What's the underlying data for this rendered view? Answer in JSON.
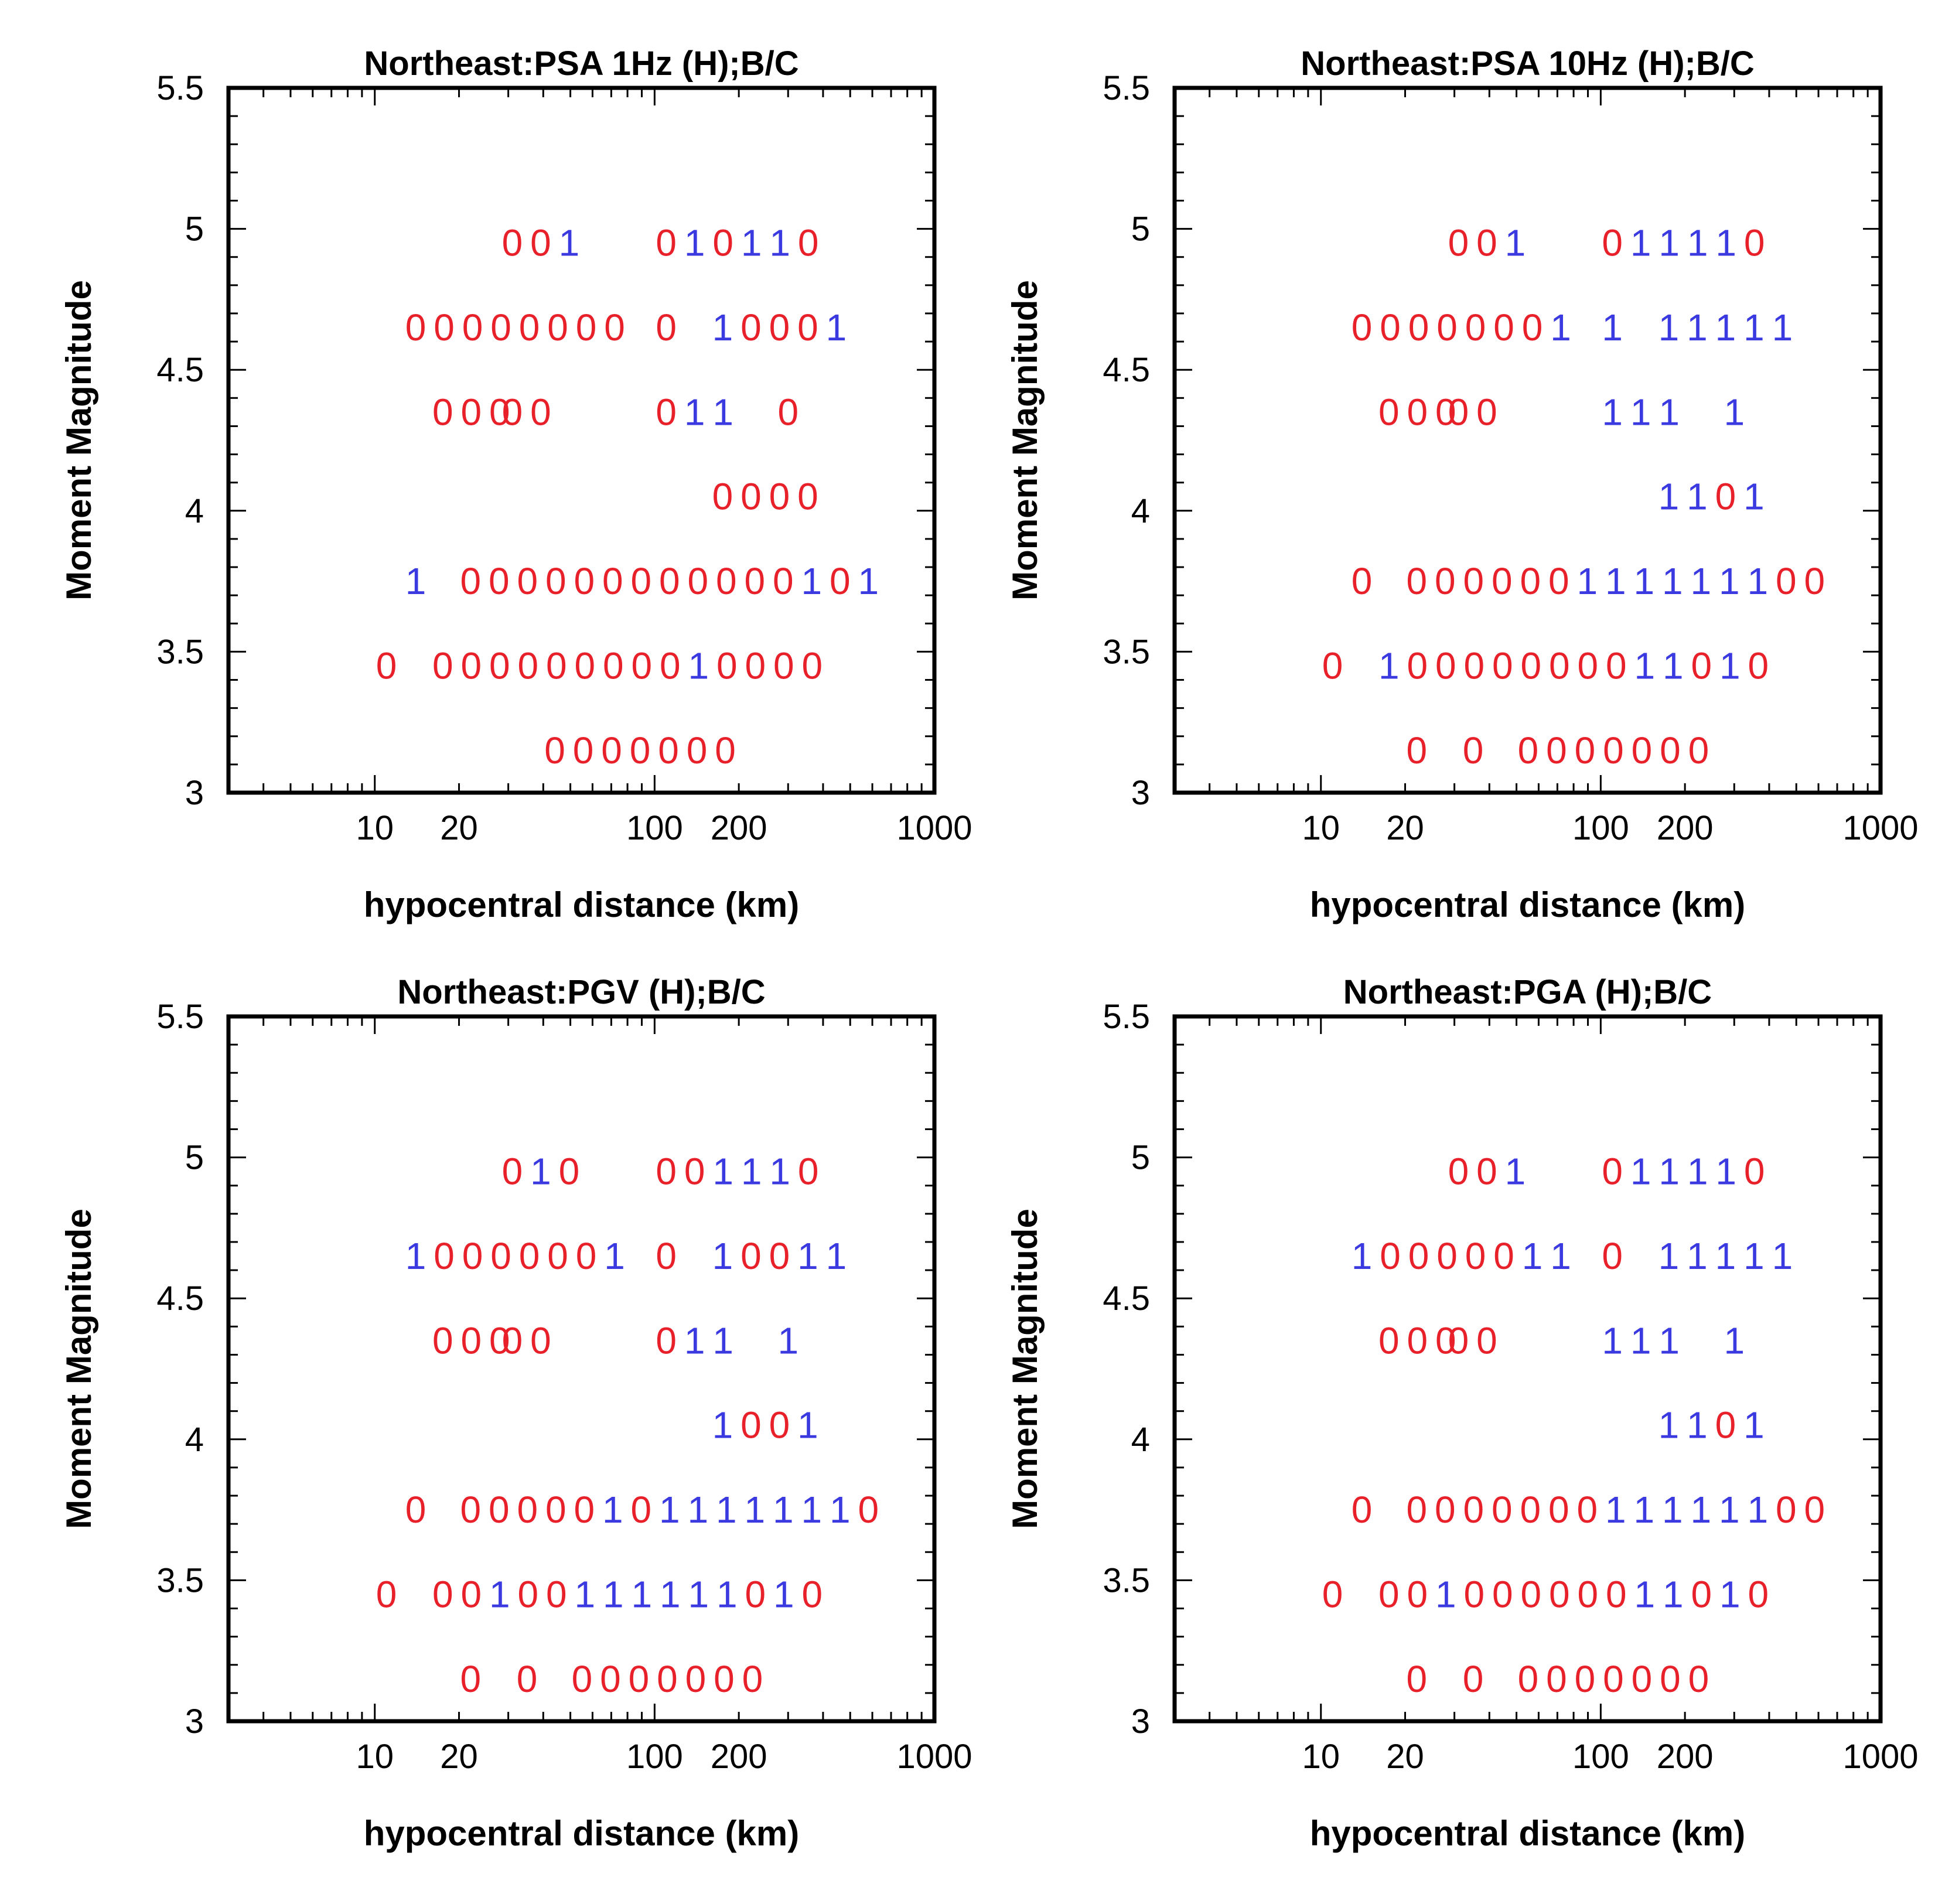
{
  "colors": {
    "zero": "#e8202a",
    "one": "#3a3ae0",
    "axis": "#000000"
  },
  "chart_data": [
    {
      "type": "scatter",
      "title": "Northeast:PSA 1Hz (H);B/C",
      "xlabel": "hypocentral distance (km)",
      "ylabel": "Moment Magnitude",
      "xscale": "log",
      "xlim": [
        3,
        1000
      ],
      "ylim": [
        3,
        5.5
      ],
      "xticks": [
        "10",
        "20",
        "100",
        "200",
        "1000"
      ],
      "yticks": [
        "3",
        "3.5",
        "4",
        "4.5",
        "5",
        "5.5"
      ],
      "rows": [
        {
          "m": 4.95,
          "x0": 31,
          "digits": "001"
        },
        {
          "m": 4.95,
          "x0": 110,
          "digits": "010110"
        },
        {
          "m": 4.65,
          "x0": 14,
          "digits": "00000000"
        },
        {
          "m": 4.65,
          "x0": 110,
          "digits": "0"
        },
        {
          "m": 4.65,
          "x0": 175,
          "digits": "10001"
        },
        {
          "m": 4.35,
          "x0": 17.5,
          "digits": "000"
        },
        {
          "m": 4.35,
          "x0": 31,
          "digits": "00"
        },
        {
          "m": 4.35,
          "x0": 110,
          "digits": "011"
        },
        {
          "m": 4.35,
          "x0": 300,
          "digits": "0"
        },
        {
          "m": 4.05,
          "x0": 175,
          "digits": "0000"
        },
        {
          "m": 3.75,
          "x0": 14,
          "digits": "1"
        },
        {
          "m": 3.75,
          "x0": 22,
          "digits": "000000000000101"
        },
        {
          "m": 3.45,
          "x0": 11,
          "digits": "0"
        },
        {
          "m": 3.45,
          "x0": 17.5,
          "digits": "00000000010000"
        },
        {
          "m": 3.15,
          "x0": 44,
          "digits": "0000000"
        }
      ]
    },
    {
      "type": "scatter",
      "title": "Northeast:PSA 10Hz (H);B/C",
      "xlabel": "hypocentral distance (km)",
      "ylabel": "Moment Magnitude",
      "xscale": "log",
      "xlim": [
        3,
        1000
      ],
      "ylim": [
        3,
        5.5
      ],
      "xticks": [
        "10",
        "20",
        "100",
        "200",
        "1000"
      ],
      "yticks": [
        "3",
        "3.5",
        "4",
        "4.5",
        "5",
        "5.5"
      ],
      "rows": [
        {
          "m": 4.95,
          "x0": 31,
          "digits": "001"
        },
        {
          "m": 4.95,
          "x0": 110,
          "digits": "011110"
        },
        {
          "m": 4.65,
          "x0": 14,
          "digits": "00000001"
        },
        {
          "m": 4.65,
          "x0": 110,
          "digits": "1"
        },
        {
          "m": 4.65,
          "x0": 175,
          "digits": "11111"
        },
        {
          "m": 4.35,
          "x0": 17.5,
          "digits": "000"
        },
        {
          "m": 4.35,
          "x0": 31,
          "digits": "00"
        },
        {
          "m": 4.35,
          "x0": 110,
          "digits": "111"
        },
        {
          "m": 4.35,
          "x0": 300,
          "digits": "1"
        },
        {
          "m": 4.05,
          "x0": 175,
          "digits": "1101"
        },
        {
          "m": 3.75,
          "x0": 14,
          "digits": "0"
        },
        {
          "m": 3.75,
          "x0": 22,
          "digits": "000000111111100"
        },
        {
          "m": 3.45,
          "x0": 11,
          "digits": "0"
        },
        {
          "m": 3.45,
          "x0": 17.5,
          "digits": "10000000011010"
        },
        {
          "m": 3.15,
          "x0": 22,
          "digits": "0"
        },
        {
          "m": 3.15,
          "x0": 35,
          "digits": "0"
        },
        {
          "m": 3.15,
          "x0": 55,
          "digits": "0000000"
        }
      ]
    },
    {
      "type": "scatter",
      "title": "Northeast:PGV (H);B/C",
      "xlabel": "hypocentral distance (km)",
      "ylabel": "Moment Magnitude",
      "xscale": "log",
      "xlim": [
        3,
        1000
      ],
      "ylim": [
        3,
        5.5
      ],
      "xticks": [
        "10",
        "20",
        "100",
        "200",
        "1000"
      ],
      "yticks": [
        "3",
        "3.5",
        "4",
        "4.5",
        "5",
        "5.5"
      ],
      "rows": [
        {
          "m": 4.95,
          "x0": 31,
          "digits": "010"
        },
        {
          "m": 4.95,
          "x0": 110,
          "digits": "001110"
        },
        {
          "m": 4.65,
          "x0": 14,
          "digits": "10000001"
        },
        {
          "m": 4.65,
          "x0": 110,
          "digits": "0"
        },
        {
          "m": 4.65,
          "x0": 175,
          "digits": "10011"
        },
        {
          "m": 4.35,
          "x0": 17.5,
          "digits": "000"
        },
        {
          "m": 4.35,
          "x0": 31,
          "digits": "00"
        },
        {
          "m": 4.35,
          "x0": 110,
          "digits": "011"
        },
        {
          "m": 4.35,
          "x0": 300,
          "digits": "1"
        },
        {
          "m": 4.05,
          "x0": 175,
          "digits": "1001"
        },
        {
          "m": 3.75,
          "x0": 14,
          "digits": "0"
        },
        {
          "m": 3.75,
          "x0": 22,
          "digits": "000001011111110"
        },
        {
          "m": 3.45,
          "x0": 11,
          "digits": "0"
        },
        {
          "m": 3.45,
          "x0": 17.5,
          "digits": "00100111111010"
        },
        {
          "m": 3.15,
          "x0": 22,
          "digits": "0"
        },
        {
          "m": 3.15,
          "x0": 35,
          "digits": "0"
        },
        {
          "m": 3.15,
          "x0": 55,
          "digits": "0000000"
        }
      ]
    },
    {
      "type": "scatter",
      "title": "Northeast:PGA (H);B/C",
      "xlabel": "hypocentral distance (km)",
      "ylabel": "Moment Magnitude",
      "xscale": "log",
      "xlim": [
        3,
        1000
      ],
      "ylim": [
        3,
        5.5
      ],
      "xticks": [
        "10",
        "20",
        "100",
        "200",
        "1000"
      ],
      "yticks": [
        "3",
        "3.5",
        "4",
        "4.5",
        "5",
        "5.5"
      ],
      "rows": [
        {
          "m": 4.95,
          "x0": 31,
          "digits": "001"
        },
        {
          "m": 4.95,
          "x0": 110,
          "digits": "011110"
        },
        {
          "m": 4.65,
          "x0": 14,
          "digits": "10000011"
        },
        {
          "m": 4.65,
          "x0": 110,
          "digits": "0"
        },
        {
          "m": 4.65,
          "x0": 175,
          "digits": "11111"
        },
        {
          "m": 4.35,
          "x0": 17.5,
          "digits": "000"
        },
        {
          "m": 4.35,
          "x0": 31,
          "digits": "00"
        },
        {
          "m": 4.35,
          "x0": 110,
          "digits": "111"
        },
        {
          "m": 4.35,
          "x0": 300,
          "digits": "1"
        },
        {
          "m": 4.05,
          "x0": 175,
          "digits": "1101"
        },
        {
          "m": 3.75,
          "x0": 14,
          "digits": "0"
        },
        {
          "m": 3.75,
          "x0": 22,
          "digits": "000000011111100"
        },
        {
          "m": 3.45,
          "x0": 11,
          "digits": "0"
        },
        {
          "m": 3.45,
          "x0": 17.5,
          "digits": "00100000011010"
        },
        {
          "m": 3.15,
          "x0": 22,
          "digits": "0"
        },
        {
          "m": 3.15,
          "x0": 35,
          "digits": "0"
        },
        {
          "m": 3.15,
          "x0": 55,
          "digits": "0000000"
        }
      ]
    }
  ]
}
